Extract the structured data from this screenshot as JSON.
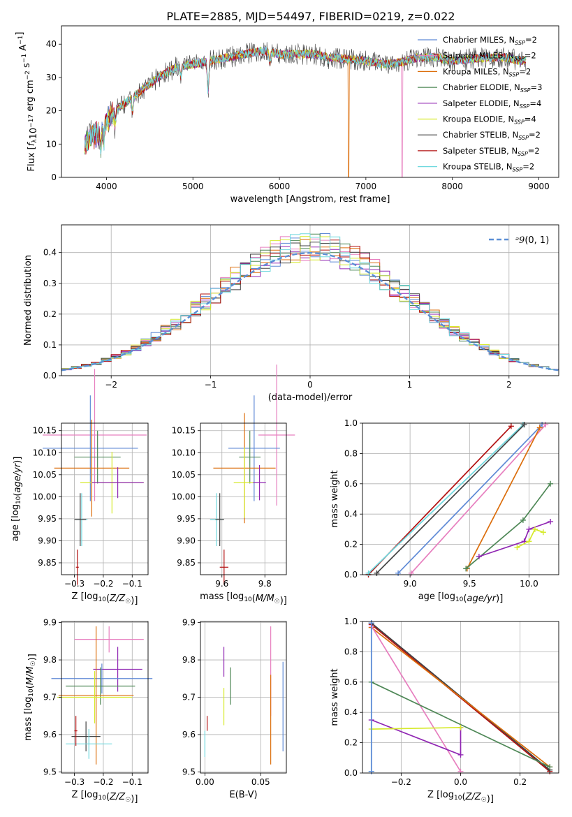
{
  "figure_title": "PLATE=2885, MJD=54497, FIBERID=0219, z=0.022",
  "colors": {
    "Chabrier MILES": "#5f8ad6",
    "Salpeter MILES": "#e77fbf",
    "Kroupa MILES": "#dc6e0c",
    "Chabrier ELODIE": "#4f8857",
    "Salpeter ELODIE": "#9026b3",
    "Kroupa ELODIE": "#d6ea2c",
    "Chabrier STELIB": "#404040",
    "Salpeter STELIB": "#b21010",
    "Kroupa STELIB": "#6fd8de",
    "normal_curve": "#5b8fd6",
    "grid": "#b0b0b0"
  },
  "chart_data": [
    {
      "id": "spectrum",
      "type": "line",
      "title": "PLATE=2885, MJD=54497, FIBERID=0219, z=0.022",
      "xlabel": "wavelength [Angstrom, rest frame]",
      "ylabel": "Flux [f_λ 10^-17 erg cm^-2 s^-1 A^-1]",
      "xlim": [
        3480,
        9230
      ],
      "ylim": [
        0,
        45.5
      ],
      "xticks": [
        4000,
        5000,
        6000,
        7000,
        8000,
        9000
      ],
      "yticks": [
        0,
        10,
        20,
        30,
        40
      ],
      "grid": false,
      "legend_position": "top-right",
      "legend": [
        {
          "name": "Chabrier MILES",
          "label": "Chabrier MILES, N_SSP=2"
        },
        {
          "name": "Salpeter MILES",
          "label": "Salpeter MILES, N_SSP=2"
        },
        {
          "name": "Kroupa MILES",
          "label": "Kroupa MILES, N_SSP=2"
        },
        {
          "name": "Chabrier ELODIE",
          "label": "Chabrier ELODIE, N_SSP=3"
        },
        {
          "name": "Salpeter ELODIE",
          "label": "Salpeter ELODIE, N_SSP=4"
        },
        {
          "name": "Kroupa ELODIE",
          "label": "Kroupa ELODIE, N_SSP=4"
        },
        {
          "name": "Chabrier STELIB",
          "label": "Chabrier STELIB, N_SSP=2"
        },
        {
          "name": "Salpeter STELIB",
          "label": "Salpeter STELIB, N_SSP=2"
        },
        {
          "name": "Kroupa STELIB",
          "label": "Kroupa STELIB, N_SSP=2"
        }
      ],
      "continuum": [
        [
          3750,
          10
        ],
        [
          3800,
          12
        ],
        [
          3900,
          13
        ],
        [
          4000,
          17
        ],
        [
          4100,
          20
        ],
        [
          4200,
          22
        ],
        [
          4400,
          26
        ],
        [
          4600,
          30
        ],
        [
          4800,
          33
        ],
        [
          5000,
          34
        ],
        [
          5200,
          35
        ],
        [
          5400,
          36
        ],
        [
          5600,
          37
        ],
        [
          5800,
          38
        ],
        [
          6000,
          37
        ],
        [
          6200,
          37
        ],
        [
          6400,
          37
        ],
        [
          6600,
          36
        ],
        [
          6800,
          35.5
        ],
        [
          7000,
          35
        ],
        [
          7200,
          34
        ],
        [
          7400,
          34.5
        ],
        [
          7600,
          36
        ],
        [
          7800,
          36
        ],
        [
          8000,
          35
        ],
        [
          8200,
          35.5
        ],
        [
          8400,
          36
        ],
        [
          8600,
          36
        ],
        [
          8800,
          35
        ]
      ],
      "absorption_lines": [
        [
          3934,
          5
        ],
        [
          3969,
          5
        ],
        [
          4102,
          3
        ],
        [
          4300,
          4
        ],
        [
          4861,
          3
        ],
        [
          5175,
          9
        ],
        [
          5890,
          3
        ],
        [
          6563,
          1
        ]
      ],
      "model_drops": [
        {
          "name": "Kroupa MILES",
          "x": 6800
        },
        {
          "name": "Salpeter MILES",
          "x": 7420
        }
      ]
    },
    {
      "id": "residuals",
      "type": "histogram",
      "xlabel": "(data-model)/error",
      "ylabel": "Normed distribution",
      "xlim": [
        -2.5,
        2.5
      ],
      "ylim": [
        0,
        0.49
      ],
      "xticks": [
        -2,
        -1,
        0,
        1,
        2
      ],
      "yticks": [
        0.0,
        0.1,
        0.2,
        0.3,
        0.4
      ],
      "grid": true,
      "legend_position": "top-right",
      "legend": [
        {
          "label": "N(0,1)"
        }
      ],
      "bin_width": 0.1,
      "normal": {
        "mu": 0,
        "sigma": 1
      }
    },
    {
      "id": "age-vs-metallicity",
      "type": "errorbar",
      "xlabel": "Z [log10(Z/Z☉)]",
      "ylabel": "age [log10(age/yr)]",
      "xlim": [
        -0.345,
        -0.045
      ],
      "ylim": [
        9.823,
        10.167
      ],
      "xticks": [
        -0.3,
        -0.2,
        -0.1
      ],
      "yticks": [
        9.85,
        9.9,
        9.95,
        10.0,
        10.05,
        10.1,
        10.15
      ],
      "grid": true,
      "points": [
        {
          "name": "Salpeter MILES",
          "x": -0.23,
          "xerr": 0.18,
          "y": 10.14,
          "yerr": 0.15
        },
        {
          "name": "Chabrier MILES",
          "x": -0.245,
          "xerr": 0.165,
          "y": 10.11,
          "yerr": 0.12
        },
        {
          "name": "Chabrier ELODIE",
          "x": -0.22,
          "xerr": 0.08,
          "y": 10.09,
          "yerr": 0.06
        },
        {
          "name": "Kroupa MILES",
          "x": -0.24,
          "xerr": 0.13,
          "y": 10.065,
          "yerr": 0.11
        },
        {
          "name": "Kroupa ELODIE",
          "x": -0.17,
          "xerr": 0.11,
          "y": 10.032,
          "yerr": 0.07
        },
        {
          "name": "Salpeter ELODIE",
          "x": -0.15,
          "xerr": 0.09,
          "y": 10.032,
          "yerr": 0.035
        },
        {
          "name": "Kroupa STELIB",
          "x": -0.275,
          "xerr": 0.02,
          "y": 9.948,
          "yerr": 0.06
        },
        {
          "name": "Chabrier STELIB",
          "x": -0.28,
          "xerr": 0.02,
          "y": 9.948,
          "yerr": 0.06
        },
        {
          "name": "Salpeter STELIB",
          "x": -0.29,
          "xerr": 0.005,
          "y": 9.84,
          "yerr": 0.04
        }
      ]
    },
    {
      "id": "age-vs-mass",
      "type": "errorbar",
      "xlabel": "mass [log10(M/M☉)]",
      "ylabel": "",
      "xlim": [
        9.5,
        9.9
      ],
      "ylim": [
        9.823,
        10.167
      ],
      "xticks": [
        9.6,
        9.8
      ],
      "yticks": [
        9.85,
        9.9,
        9.95,
        10.0,
        10.05,
        10.1,
        10.15
      ],
      "grid": true,
      "points": [
        {
          "name": "Salpeter MILES",
          "x": 9.855,
          "xerr": 0.085,
          "y": 10.14,
          "yerr": 0.16
        },
        {
          "name": "Chabrier MILES",
          "x": 9.75,
          "xerr": 0.12,
          "y": 10.11,
          "yerr": 0.12
        },
        {
          "name": "Chabrier ELODIE",
          "x": 9.73,
          "xerr": 0.05,
          "y": 10.09,
          "yerr": 0.06
        },
        {
          "name": "Kroupa MILES",
          "x": 9.705,
          "xerr": 0.145,
          "y": 10.065,
          "yerr": 0.125
        },
        {
          "name": "Kroupa ELODIE",
          "x": 9.705,
          "xerr": 0.05,
          "y": 10.032,
          "yerr": 0.08
        },
        {
          "name": "Salpeter ELODIE",
          "x": 9.775,
          "xerr": 0.03,
          "y": 10.032,
          "yerr": 0.04
        },
        {
          "name": "Kroupa STELIB",
          "x": 9.575,
          "xerr": 0.03,
          "y": 9.948,
          "yerr": 0.06
        },
        {
          "name": "Chabrier STELIB",
          "x": 9.59,
          "xerr": 0.02,
          "y": 9.948,
          "yerr": 0.06
        },
        {
          "name": "Salpeter STELIB",
          "x": 9.61,
          "xerr": 0.02,
          "y": 9.84,
          "yerr": 0.04
        }
      ]
    },
    {
      "id": "mass-weight-vs-age",
      "type": "line",
      "xlabel": "age [log10(age/yr)]",
      "ylabel": "mass weight",
      "xlim": [
        8.6,
        10.25
      ],
      "ylim": [
        0.0,
        1.0
      ],
      "xticks": [
        9.0,
        9.5,
        10.0
      ],
      "yticks": [
        0.0,
        0.2,
        0.4,
        0.6,
        0.8,
        1.0
      ],
      "grid": true,
      "series": [
        {
          "name": "Salpeter STELIB",
          "points": [
            [
              8.65,
              0.0
            ],
            [
              9.85,
              0.98
            ]
          ]
        },
        {
          "name": "Kroupa STELIB",
          "points": [
            [
              8.65,
              0.01
            ],
            [
              9.95,
              0.99
            ]
          ]
        },
        {
          "name": "Chabrier STELIB",
          "points": [
            [
              8.72,
              0.01
            ],
            [
              9.96,
              0.99
            ]
          ]
        },
        {
          "name": "Chabrier MILES",
          "points": [
            [
              8.9,
              0.01
            ],
            [
              10.11,
              0.99
            ]
          ]
        },
        {
          "name": "Salpeter MILES",
          "points": [
            [
              9.01,
              0.01
            ],
            [
              10.14,
              0.99
            ]
          ]
        },
        {
          "name": "Kroupa MILES",
          "points": [
            [
              9.48,
              0.04
            ],
            [
              10.09,
              0.97
            ]
          ]
        },
        {
          "name": "Chabrier ELODIE",
          "points": [
            [
              9.47,
              0.04
            ],
            [
              9.95,
              0.36
            ],
            [
              10.18,
              0.6
            ]
          ]
        },
        {
          "name": "Salpeter ELODIE",
          "points": [
            [
              9.58,
              0.12
            ],
            [
              9.96,
              0.22
            ],
            [
              10.0,
              0.3
            ],
            [
              10.18,
              0.35
            ]
          ]
        },
        {
          "name": "Kroupa ELODIE",
          "points": [
            [
              9.9,
              0.18
            ],
            [
              10.0,
              0.22
            ],
            [
              10.05,
              0.3
            ],
            [
              10.12,
              0.28
            ]
          ]
        }
      ]
    },
    {
      "id": "mass-vs-metallicity",
      "type": "errorbar",
      "xlabel": "Z [log10(Z/Z☉)]",
      "ylabel": "mass [log10(M/M☉)]",
      "xlim": [
        -0.345,
        -0.045
      ],
      "ylim": [
        9.497,
        9.903
      ],
      "xticks": [
        -0.3,
        -0.2,
        -0.1
      ],
      "yticks": [
        9.5,
        9.6,
        9.7,
        9.8,
        9.9
      ],
      "grid": true,
      "points": [
        {
          "name": "Salpeter MILES",
          "x": -0.18,
          "xerr": 0.12,
          "y": 9.855,
          "yerr": 0.035
        },
        {
          "name": "Salpeter ELODIE",
          "x": -0.15,
          "xerr": 0.085,
          "y": 9.775,
          "yerr": 0.06
        },
        {
          "name": "Chabrier MILES",
          "x": -0.205,
          "xerr": 0.175,
          "y": 9.75,
          "yerr": 0.04
        },
        {
          "name": "Chabrier ELODIE",
          "x": -0.21,
          "xerr": 0.12,
          "y": 9.73,
          "yerr": 0.05
        },
        {
          "name": "Kroupa MILES",
          "x": -0.225,
          "xerr": 0.13,
          "y": 9.705,
          "yerr": 0.185
        },
        {
          "name": "Kroupa ELODIE",
          "x": -0.23,
          "xerr": 0.13,
          "y": 9.7,
          "yerr": 0.07
        },
        {
          "name": "Chabrier STELIB",
          "x": -0.26,
          "xerr": 0.05,
          "y": 9.595,
          "yerr": 0.04
        },
        {
          "name": "Kroupa STELIB",
          "x": -0.25,
          "xerr": 0.08,
          "y": 9.575,
          "yerr": 0.04
        },
        {
          "name": "Salpeter STELIB",
          "x": -0.295,
          "xerr": 0.005,
          "y": 9.61,
          "yerr": 0.04
        }
      ]
    },
    {
      "id": "mass-vs-ebv",
      "type": "errorbar",
      "xlabel": "E(B-V)",
      "ylabel": "",
      "xlim": [
        -0.004,
        0.073
      ],
      "ylim": [
        9.497,
        9.903
      ],
      "xticks": [
        0.0,
        0.05
      ],
      "yticks": [
        9.5,
        9.6,
        9.7,
        9.8,
        9.9
      ],
      "grid": true,
      "points": [
        {
          "name": "Kroupa STELIB",
          "x": 0.0,
          "y": 9.575,
          "yerr": 0.035
        },
        {
          "name": "Salpeter STELIB",
          "x": 0.002,
          "y": 9.63,
          "yerr": 0.02
        },
        {
          "name": "Salpeter ELODIE",
          "x": 0.017,
          "y": 9.795,
          "yerr": 0.04
        },
        {
          "name": "Kroupa ELODIE",
          "x": 0.017,
          "y": 9.675,
          "yerr": 0.05
        },
        {
          "name": "Chabrier ELODIE",
          "x": 0.023,
          "y": 9.73,
          "yerr": 0.05
        },
        {
          "name": "Salpeter MILES",
          "x": 0.059,
          "y": 9.77,
          "yerr": 0.12
        },
        {
          "name": "Kroupa MILES",
          "x": 0.059,
          "y": 9.64,
          "yerr": 0.12
        },
        {
          "name": "Chabrier MILES",
          "x": 0.07,
          "y": 9.675,
          "yerr": 0.12
        }
      ]
    },
    {
      "id": "mass-weight-vs-metallicity",
      "type": "line",
      "xlabel": "Z [log10(Z/Z☉)]",
      "ylabel": "mass weight",
      "xlim": [
        -0.33,
        0.33
      ],
      "ylim": [
        0.0,
        1.0
      ],
      "xticks": [
        -0.2,
        0.0,
        0.2
      ],
      "yticks": [
        0.0,
        0.2,
        0.4,
        0.6,
        0.8,
        1.0
      ],
      "grid": true,
      "series": [
        {
          "name": "Kroupa STELIB",
          "points": [
            [
              -0.3,
              0.99
            ],
            [
              -0.3,
              0.01
            ]
          ]
        },
        {
          "name": "Salpeter STELIB",
          "points": [
            [
              -0.3,
              0.98
            ],
            [
              0.3,
              0.01
            ]
          ]
        },
        {
          "name": "Chabrier STELIB",
          "points": [
            [
              -0.3,
              0.99
            ],
            [
              0.3,
              0.02
            ]
          ]
        },
        {
          "name": "Kroupa MILES",
          "points": [
            [
              -0.3,
              0.96
            ],
            [
              0.3,
              0.04
            ]
          ]
        },
        {
          "name": "Salpeter MILES",
          "points": [
            [
              -0.3,
              0.97
            ],
            [
              0.0,
              0.01
            ]
          ]
        },
        {
          "name": "Chabrier ELODIE",
          "points": [
            [
              -0.3,
              0.6
            ],
            [
              0.3,
              0.04
            ]
          ]
        },
        {
          "name": "Salpeter ELODIE",
          "points": [
            [
              -0.3,
              0.35
            ],
            [
              0.0,
              0.12
            ],
            [
              0.0,
              0.3
            ]
          ]
        },
        {
          "name": "Kroupa ELODIE",
          "points": [
            [
              -0.3,
              0.29
            ],
            [
              0.0,
              0.3
            ]
          ]
        },
        {
          "name": "Chabrier MILES",
          "points": [
            [
              -0.3,
              0.99
            ],
            [
              -0.3,
              0.01
            ]
          ]
        }
      ]
    }
  ]
}
